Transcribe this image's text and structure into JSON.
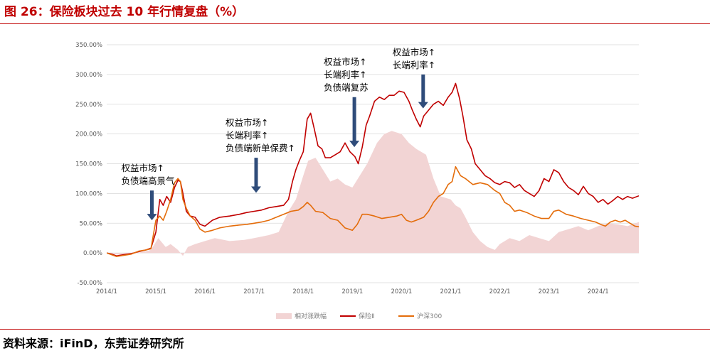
{
  "figure": {
    "title": "图 26：保险板块过去 10 年行情复盘（%）",
    "source": "资料来源：iFinD，东莞证券研究所"
  },
  "chart_data": {
    "type": "line",
    "title": "",
    "xlabel": "",
    "ylabel": "",
    "ylim": [
      -50,
      350
    ],
    "y_ticks": [
      "-50.00%",
      "0.00%",
      "50.00%",
      "100.00%",
      "150.00%",
      "200.00%",
      "250.00%",
      "300.00%",
      "350.00%"
    ],
    "y_tick_values": [
      -50,
      0,
      50,
      100,
      150,
      200,
      250,
      300,
      350
    ],
    "x_ticks": [
      "2014/1",
      "2015/1",
      "2016/1",
      "2017/1",
      "2018/1",
      "2019/1",
      "2020/1",
      "2021/1",
      "2022/1",
      "2023/1",
      "2024/1"
    ],
    "x_tick_values": [
      2014.0,
      2015.0,
      2016.0,
      2017.0,
      2018.0,
      2019.0,
      2020.0,
      2021.0,
      2022.0,
      2023.0,
      2024.0
    ],
    "xlim": [
      2014.0,
      2024.83
    ],
    "grid": "horizontal",
    "legend_position": "bottom",
    "series": [
      {
        "name": "相对涨跌幅",
        "kind": "area",
        "color": "#f2d4d4",
        "x": [
          2014.0,
          2014.25,
          2014.5,
          2014.75,
          2014.9,
          2015.05,
          2015.2,
          2015.3,
          2015.45,
          2015.55,
          2015.65,
          2015.8,
          2016.0,
          2016.2,
          2016.5,
          2016.8,
          2017.0,
          2017.3,
          2017.5,
          2017.7,
          2017.85,
          2018.0,
          2018.1,
          2018.25,
          2018.4,
          2018.55,
          2018.7,
          2018.85,
          2019.0,
          2019.15,
          2019.3,
          2019.5,
          2019.65,
          2019.8,
          2020.0,
          2020.15,
          2020.3,
          2020.5,
          2020.65,
          2020.8,
          2021.0,
          2021.1,
          2021.2,
          2021.3,
          2021.45,
          2021.6,
          2021.75,
          2021.9,
          2022.0,
          2022.2,
          2022.4,
          2022.6,
          2022.8,
          2023.0,
          2023.2,
          2023.4,
          2023.6,
          2023.8,
          2024.0,
          2024.2,
          2024.4,
          2024.6,
          2024.83
        ],
        "values": [
          0,
          -3,
          -2,
          2,
          5,
          25,
          10,
          15,
          5,
          -5,
          10,
          15,
          20,
          25,
          20,
          22,
          25,
          30,
          35,
          70,
          90,
          130,
          155,
          160,
          140,
          120,
          125,
          115,
          110,
          130,
          150,
          185,
          200,
          205,
          200,
          185,
          175,
          165,
          125,
          95,
          90,
          80,
          75,
          60,
          35,
          20,
          10,
          5,
          15,
          25,
          20,
          30,
          25,
          20,
          35,
          40,
          45,
          38,
          45,
          50,
          48,
          45,
          52
        ]
      },
      {
        "name": "保险Ⅱ",
        "kind": "line",
        "color": "#c00000",
        "x": [
          2014.0,
          2014.1,
          2014.2,
          2014.35,
          2014.5,
          2014.65,
          2014.8,
          2014.9,
          2015.0,
          2015.08,
          2015.15,
          2015.22,
          2015.3,
          2015.38,
          2015.45,
          2015.5,
          2015.55,
          2015.62,
          2015.7,
          2015.8,
          2015.9,
          2016.0,
          2016.15,
          2016.3,
          2016.5,
          2016.7,
          2016.85,
          2017.0,
          2017.15,
          2017.3,
          2017.45,
          2017.6,
          2017.7,
          2017.78,
          2017.85,
          2017.92,
          2018.0,
          2018.08,
          2018.15,
          2018.22,
          2018.3,
          2018.38,
          2018.45,
          2018.55,
          2018.65,
          2018.75,
          2018.85,
          2018.95,
          2019.05,
          2019.12,
          2019.2,
          2019.28,
          2019.35,
          2019.45,
          2019.55,
          2019.65,
          2019.75,
          2019.85,
          2019.95,
          2020.05,
          2020.15,
          2020.22,
          2020.3,
          2020.38,
          2020.45,
          2020.55,
          2020.65,
          2020.75,
          2020.85,
          2020.95,
          2021.03,
          2021.1,
          2021.18,
          2021.25,
          2021.33,
          2021.42,
          2021.5,
          2021.6,
          2021.7,
          2021.8,
          2021.9,
          2022.0,
          2022.1,
          2022.2,
          2022.3,
          2022.4,
          2022.5,
          2022.6,
          2022.7,
          2022.8,
          2022.9,
          2023.0,
          2023.1,
          2023.2,
          2023.3,
          2023.4,
          2023.5,
          2023.6,
          2023.7,
          2023.8,
          2023.9,
          2024.0,
          2024.1,
          2024.2,
          2024.3,
          2024.4,
          2024.5,
          2024.6,
          2024.7,
          2024.83
        ],
        "values": [
          0,
          -2,
          -5,
          -3,
          -1,
          2,
          5,
          8,
          35,
          90,
          80,
          95,
          85,
          110,
          122,
          120,
          100,
          70,
          62,
          60,
          48,
          45,
          55,
          60,
          62,
          65,
          68,
          70,
          72,
          76,
          78,
          80,
          90,
          120,
          140,
          155,
          170,
          225,
          235,
          210,
          180,
          175,
          160,
          160,
          165,
          170,
          185,
          170,
          162,
          150,
          178,
          215,
          230,
          255,
          262,
          258,
          265,
          265,
          272,
          270,
          255,
          240,
          225,
          212,
          230,
          240,
          250,
          255,
          248,
          262,
          270,
          285,
          260,
          230,
          190,
          175,
          150,
          140,
          130,
          125,
          118,
          115,
          120,
          118,
          110,
          115,
          105,
          100,
          95,
          105,
          125,
          120,
          140,
          135,
          120,
          110,
          105,
          98,
          112,
          100,
          95,
          85,
          90,
          82,
          88,
          95,
          90,
          95,
          92,
          96
        ]
      },
      {
        "name": "沪深300",
        "kind": "line",
        "color": "#e46c0a",
        "x": [
          2014.0,
          2014.1,
          2014.2,
          2014.35,
          2014.5,
          2014.65,
          2014.8,
          2014.9,
          2015.0,
          2015.08,
          2015.15,
          2015.22,
          2015.3,
          2015.38,
          2015.45,
          2015.5,
          2015.55,
          2015.62,
          2015.7,
          2015.8,
          2015.9,
          2016.0,
          2016.15,
          2016.3,
          2016.5,
          2016.7,
          2016.85,
          2017.0,
          2017.15,
          2017.3,
          2017.45,
          2017.6,
          2017.75,
          2017.9,
          2018.0,
          2018.08,
          2018.15,
          2018.25,
          2018.4,
          2018.55,
          2018.7,
          2018.85,
          2019.0,
          2019.1,
          2019.2,
          2019.3,
          2019.45,
          2019.6,
          2019.75,
          2019.9,
          2020.0,
          2020.1,
          2020.2,
          2020.3,
          2020.45,
          2020.55,
          2020.65,
          2020.75,
          2020.85,
          2020.95,
          2021.03,
          2021.1,
          2021.2,
          2021.3,
          2021.45,
          2021.6,
          2021.75,
          2021.9,
          2022.0,
          2022.1,
          2022.2,
          2022.3,
          2022.4,
          2022.55,
          2022.7,
          2022.85,
          2023.0,
          2023.1,
          2023.2,
          2023.35,
          2023.5,
          2023.65,
          2023.8,
          2023.95,
          2024.05,
          2024.15,
          2024.25,
          2024.35,
          2024.45,
          2024.55,
          2024.65,
          2024.75,
          2024.83
        ],
        "values": [
          0,
          -3,
          -6,
          -4,
          -2,
          3,
          5,
          7,
          55,
          62,
          55,
          70,
          90,
          118,
          125,
          120,
          90,
          75,
          62,
          55,
          40,
          35,
          38,
          42,
          45,
          47,
          48,
          50,
          52,
          55,
          60,
          65,
          70,
          72,
          78,
          85,
          80,
          70,
          68,
          58,
          55,
          42,
          38,
          48,
          65,
          65,
          62,
          58,
          60,
          62,
          65,
          55,
          52,
          55,
          60,
          70,
          85,
          95,
          100,
          115,
          120,
          145,
          130,
          125,
          115,
          118,
          115,
          105,
          100,
          85,
          80,
          70,
          72,
          68,
          62,
          58,
          58,
          70,
          72,
          65,
          62,
          58,
          55,
          52,
          48,
          45,
          52,
          55,
          52,
          55,
          50,
          45,
          44
        ]
      }
    ],
    "annotations": [
      {
        "lines": [
          "权益市场↑",
          "负债端高景气"
        ],
        "arrow_x": 2014.92,
        "arrow_from": 105,
        "arrow_to": 55
      },
      {
        "lines": [
          "权益市场↑",
          "长端利率↑",
          "负债端新单保费↑"
        ],
        "arrow_x": 2017.04,
        "arrow_from": 160,
        "arrow_to": 101
      },
      {
        "lines": [
          "权益市场↑",
          "长端利率↑",
          "负债端复苏"
        ],
        "arrow_x": 2019.04,
        "arrow_from": 262,
        "arrow_to": 178
      },
      {
        "lines": [
          "权益市场↑",
          "长端利率↑"
        ],
        "arrow_x": 2020.44,
        "arrow_from": 300,
        "arrow_to": 243
      }
    ]
  }
}
